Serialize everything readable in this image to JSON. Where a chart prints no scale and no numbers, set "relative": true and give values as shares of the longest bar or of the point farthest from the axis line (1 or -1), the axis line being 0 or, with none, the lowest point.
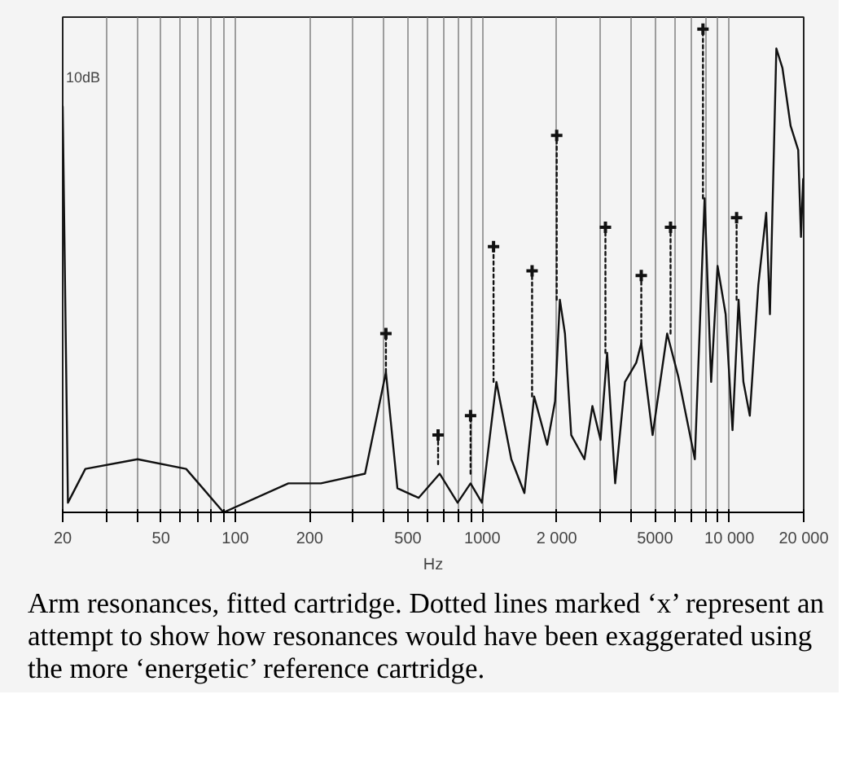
{
  "chart_data": {
    "type": "line",
    "relative": true,
    "log": "x",
    "xlabel": "Hz",
    "xlim": [
      20,
      20000
    ],
    "xticks": [
      20,
      {
        "value": 30,
        "label": null
      },
      {
        "value": 40,
        "label": null
      },
      50,
      {
        "value": 60,
        "label": null
      },
      {
        "value": 70,
        "label": null
      },
      {
        "value": 80,
        "label": null
      },
      {
        "value": 90,
        "label": null
      },
      100,
      200,
      {
        "value": 300,
        "label": null
      },
      {
        "value": 400,
        "label": null
      },
      500,
      {
        "value": 600,
        "label": null
      },
      {
        "value": 700,
        "label": null
      },
      {
        "value": 800,
        "label": null
      },
      {
        "value": 900,
        "label": null
      },
      1000,
      {
        "value": 2000,
        "label": "2 000"
      },
      {
        "value": 3000,
        "label": null
      },
      {
        "value": 4000,
        "label": null
      },
      5000,
      {
        "value": 6000,
        "label": null
      },
      {
        "value": 7000,
        "label": null
      },
      {
        "value": 8000,
        "label": null
      },
      {
        "value": 9000,
        "label": null
      },
      {
        "value": 10000,
        "label": "10 000"
      },
      {
        "value": 20000,
        "label": "20 000"
      }
    ],
    "grid": "x",
    "marker": "none",
    "line_style": "solid",
    "annotations": [
      "10dB",
      "Arm resonances, fitted cartridge. Dotted lines marked ‘x’ represent an attempt to show how resonances would have been exaggerated using the more ‘energetic’ reference cartridge."
    ],
    "series": [
      {
        "type": "line",
        "color": "#111111",
        "x": [
          20,
          21,
          24.7,
          40.2,
          63.2,
          89.6,
          164,
          222,
          335,
          407,
          453,
          552,
          672,
          794,
          896,
          996,
          1140,
          1310,
          1480,
          1620,
          1830,
          1970,
          2060,
          2160,
          2290,
          2590,
          2790,
          3010,
          3200,
          3450,
          3780,
          4200,
          4400,
          4890,
          5600,
          6220,
          7250,
          7940,
          8440,
          8960,
          9660,
          10300,
          10900,
          11400,
          12100,
          13100,
          14100,
          14600,
          15500,
          16400,
          17700,
          19000,
          19500,
          19900
        ],
        "values": [
          0.84,
          0.02,
          0.09,
          0.11,
          0.09,
          0,
          0.06,
          0.06,
          0.08,
          0.29,
          0.05,
          0.03,
          0.08,
          0.02,
          0.06,
          0.02,
          0.27,
          0.11,
          0.04,
          0.24,
          0.14,
          0.23,
          0.44,
          0.37,
          0.16,
          0.11,
          0.22,
          0.15,
          0.33,
          0.06,
          0.27,
          0.31,
          0.35,
          0.16,
          0.37,
          0.28,
          0.11,
          0.65,
          0.27,
          0.51,
          0.41,
          0.17,
          0.44,
          0.27,
          0.2,
          0.47,
          0.62,
          0.41,
          0.96,
          0.92,
          0.8,
          0.75,
          0.57,
          0.69
        ]
      },
      {
        "type": "line",
        "line_style": "dotted",
        "color": "#111111",
        "x": [
          407,
          407
        ],
        "values": [
          0.29,
          0.37
        ]
      },
      {
        "type": "line",
        "line_style": "dotted",
        "color": "#111111",
        "x": [
          662,
          662
        ],
        "values": [
          0.1,
          0.16
        ]
      },
      {
        "type": "line",
        "line_style": "dotted",
        "color": "#111111",
        "x": [
          896,
          896
        ],
        "values": [
          0.08,
          0.2
        ]
      },
      {
        "type": "line",
        "line_style": "dotted",
        "color": "#111111",
        "x": [
          1110,
          1110
        ],
        "values": [
          0.27,
          0.55
        ]
      },
      {
        "type": "line",
        "line_style": "dotted",
        "color": "#111111",
        "x": [
          1590,
          1590
        ],
        "values": [
          0.24,
          0.5
        ]
      },
      {
        "type": "line",
        "line_style": "dotted",
        "color": "#111111",
        "x": [
          2000,
          2000
        ],
        "values": [
          0.44,
          0.78
        ]
      },
      {
        "type": "line",
        "line_style": "dotted",
        "color": "#111111",
        "x": [
          3150,
          3150
        ],
        "values": [
          0.33,
          0.59
        ]
      },
      {
        "type": "line",
        "line_style": "dotted",
        "color": "#111111",
        "x": [
          4400,
          4400
        ],
        "values": [
          0.35,
          0.49
        ]
      },
      {
        "type": "line",
        "line_style": "dotted",
        "color": "#111111",
        "x": [
          5780,
          5780
        ],
        "values": [
          0.37,
          0.59
        ]
      },
      {
        "type": "line",
        "line_style": "dotted",
        "color": "#111111",
        "x": [
          7820,
          7820
        ],
        "values": [
          0.65,
          1.0
        ]
      },
      {
        "type": "line",
        "line_style": "dotted",
        "color": "#111111",
        "x": [
          10700,
          10700
        ],
        "values": [
          0.44,
          0.61
        ]
      },
      {
        "type": "scatter",
        "marker": "cross",
        "color": "#111111",
        "x": [
          407,
          662,
          896,
          1110,
          1590,
          2000,
          3150,
          4400,
          5780,
          7820,
          10700
        ],
        "values": [
          0.37,
          0.16,
          0.2,
          0.55,
          0.5,
          0.78,
          0.59,
          0.49,
          0.59,
          1.0,
          0.61
        ]
      }
    ]
  }
}
